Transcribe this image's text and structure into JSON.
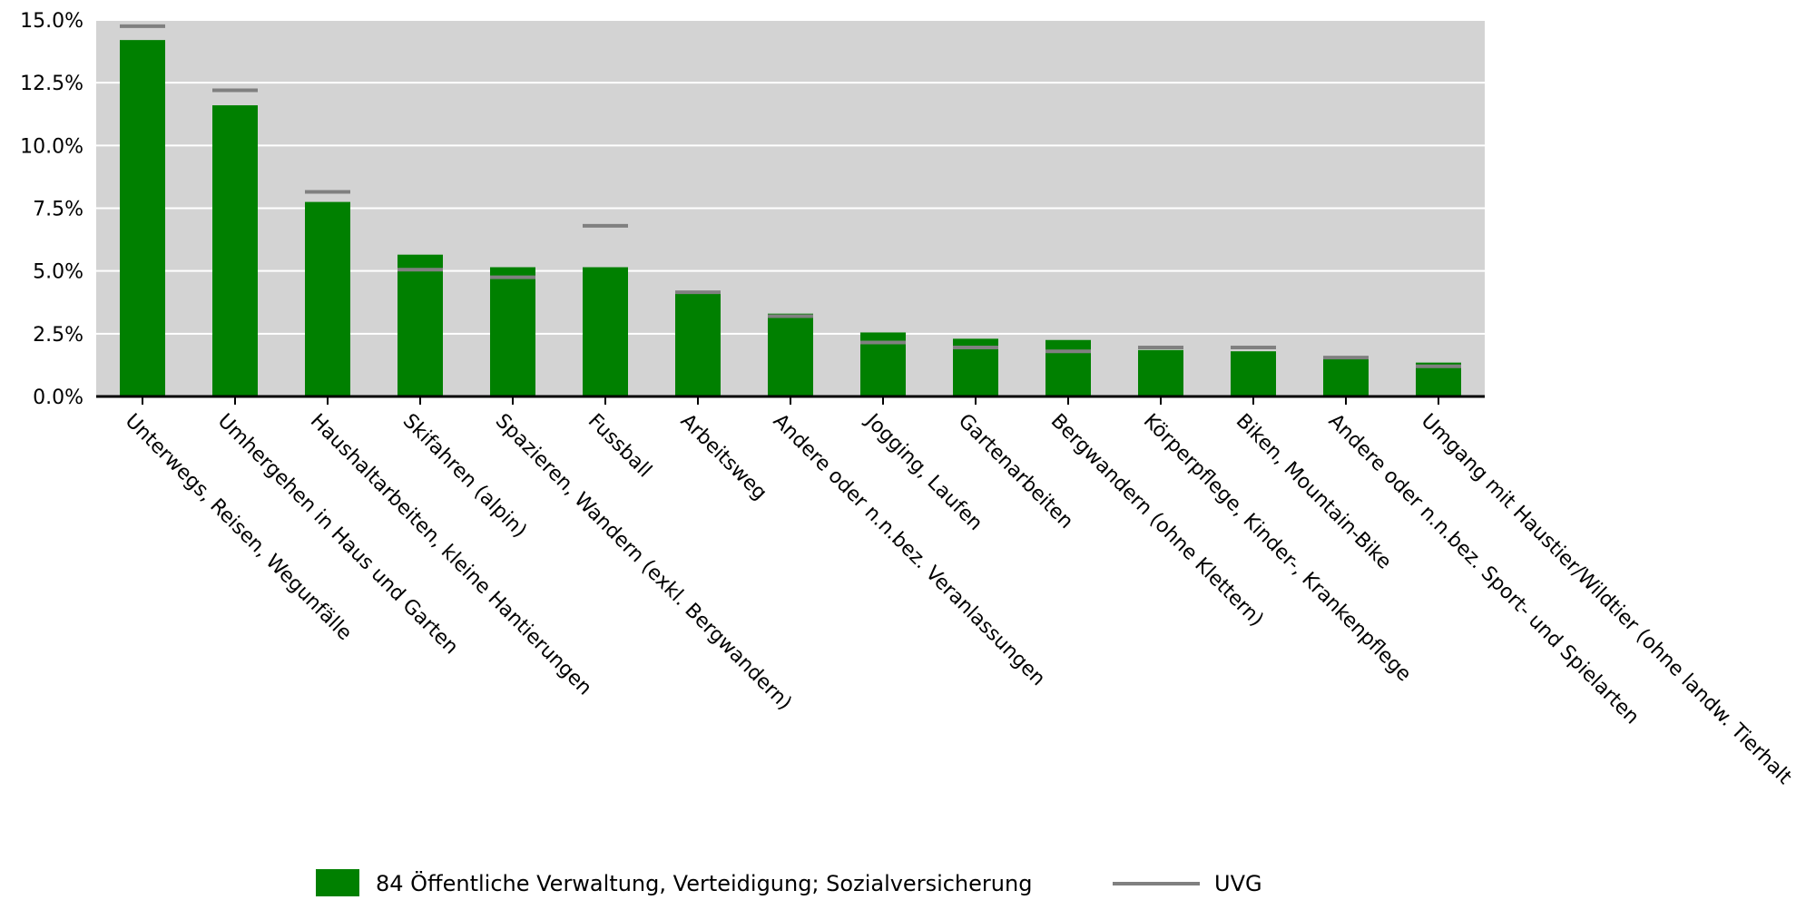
{
  "chart_data": {
    "type": "bar",
    "ylim": [
      0,
      15
    ],
    "yticks": [
      "0.0%",
      "2.5%",
      "5.0%",
      "7.5%",
      "10.0%",
      "12.5%",
      "15.0%"
    ],
    "ytick_values": [
      0,
      2.5,
      5,
      7.5,
      10,
      12.5,
      15
    ],
    "grid": true,
    "legend_position": "bottom",
    "categories": [
      "Unterwegs, Reisen, Wegunfälle",
      "Umhergehen in Haus und Garten",
      "Haushaltarbeiten, kleine Hantierungen",
      "Skifahren (alpin)",
      "Spazieren, Wandern (exkl. Bergwandern)",
      "Fussball",
      "Arbeitsweg",
      "Andere oder n.n.bez. Veranlassungen",
      "Jogging, Laufen",
      "Gartenarbeiten",
      "Bergwandern (ohne Klettern)",
      "Körperpflege, Kinder-, Krankenpflege",
      "Biken, Mountain-Bike",
      "Andere oder n.n.bez. Sport- und Spielarten",
      "Umgang mit Haustier/Wildtier (ohne landw. Tierhalt"
    ],
    "series": [
      {
        "name": "84 Öffentliche Verwaltung, Verteidigung; Sozialversicherung",
        "type": "bar",
        "color": "#008000",
        "values": [
          14.2,
          11.6,
          7.75,
          5.65,
          5.15,
          5.15,
          4.1,
          3.3,
          2.55,
          2.3,
          2.25,
          1.85,
          1.8,
          1.55,
          1.35
        ]
      },
      {
        "name": "UVG",
        "type": "marker",
        "color": "#808080",
        "values": [
          14.75,
          12.2,
          8.15,
          5.05,
          4.75,
          6.8,
          4.15,
          3.2,
          2.15,
          1.95,
          1.8,
          1.95,
          1.95,
          1.55,
          1.2
        ]
      }
    ]
  }
}
